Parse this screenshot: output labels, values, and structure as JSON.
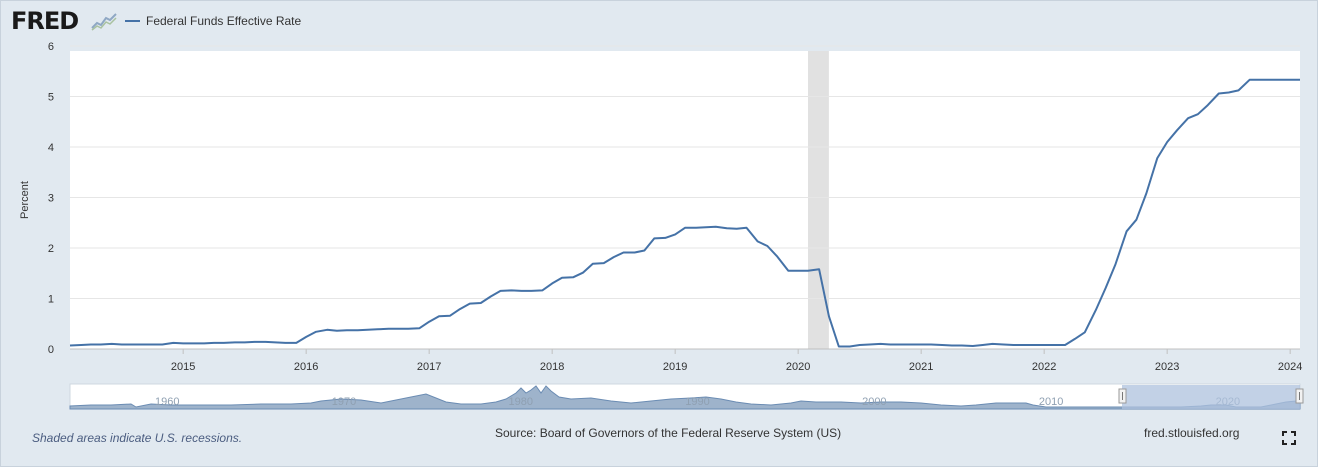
{
  "header": {
    "logo_text": "FRED",
    "legend_label": "Federal Funds Effective Rate",
    "series_color": "#4572a7"
  },
  "footer": {
    "recession_note": "Shaded areas indicate U.S. recessions.",
    "source": "Source: Board of Governors of the Federal Reserve System (US)",
    "site": "fred.stlouisfed.org",
    "fullscreen_icon": "fullscreen-icon"
  },
  "chart_data": {
    "type": "line",
    "title": "Federal Funds Effective Rate",
    "xlabel": "",
    "ylabel": "Percent",
    "x_domain": [
      2014.08,
      2024.08
    ],
    "ylim": [
      0,
      6
    ],
    "y_ticks": [
      "0",
      "1",
      "2",
      "3",
      "4",
      "5",
      "6"
    ],
    "x_ticks": [
      "2015",
      "2016",
      "2017",
      "2018",
      "2019",
      "2020",
      "2021",
      "2022",
      "2023",
      "2024"
    ],
    "recessions": [
      [
        2020.08,
        2020.25
      ]
    ],
    "series": [
      {
        "name": "Federal Funds Effective Rate",
        "color": "#4572a7",
        "points": [
          [
            2014.08,
            0.07
          ],
          [
            2014.17,
            0.08
          ],
          [
            2014.25,
            0.09
          ],
          [
            2014.33,
            0.09
          ],
          [
            2014.42,
            0.1
          ],
          [
            2014.5,
            0.09
          ],
          [
            2014.58,
            0.09
          ],
          [
            2014.67,
            0.09
          ],
          [
            2014.75,
            0.09
          ],
          [
            2014.83,
            0.09
          ],
          [
            2014.92,
            0.12
          ],
          [
            2015.0,
            0.11
          ],
          [
            2015.08,
            0.11
          ],
          [
            2015.17,
            0.11
          ],
          [
            2015.25,
            0.12
          ],
          [
            2015.33,
            0.12
          ],
          [
            2015.42,
            0.13
          ],
          [
            2015.5,
            0.13
          ],
          [
            2015.58,
            0.14
          ],
          [
            2015.67,
            0.14
          ],
          [
            2015.75,
            0.13
          ],
          [
            2015.83,
            0.12
          ],
          [
            2015.92,
            0.12
          ],
          [
            2016.0,
            0.24
          ],
          [
            2016.08,
            0.34
          ],
          [
            2016.17,
            0.38
          ],
          [
            2016.25,
            0.36
          ],
          [
            2016.33,
            0.37
          ],
          [
            2016.42,
            0.37
          ],
          [
            2016.5,
            0.38
          ],
          [
            2016.58,
            0.39
          ],
          [
            2016.67,
            0.4
          ],
          [
            2016.75,
            0.4
          ],
          [
            2016.83,
            0.4
          ],
          [
            2016.92,
            0.41
          ],
          [
            2017.0,
            0.54
          ],
          [
            2017.08,
            0.65
          ],
          [
            2017.17,
            0.66
          ],
          [
            2017.25,
            0.79
          ],
          [
            2017.33,
            0.9
          ],
          [
            2017.42,
            0.91
          ],
          [
            2017.5,
            1.04
          ],
          [
            2017.58,
            1.15
          ],
          [
            2017.67,
            1.16
          ],
          [
            2017.75,
            1.15
          ],
          [
            2017.83,
            1.15
          ],
          [
            2017.92,
            1.16
          ],
          [
            2018.0,
            1.3
          ],
          [
            2018.08,
            1.41
          ],
          [
            2018.17,
            1.42
          ],
          [
            2018.25,
            1.51
          ],
          [
            2018.33,
            1.69
          ],
          [
            2018.42,
            1.7
          ],
          [
            2018.5,
            1.82
          ],
          [
            2018.58,
            1.91
          ],
          [
            2018.67,
            1.91
          ],
          [
            2018.75,
            1.95
          ],
          [
            2018.83,
            2.19
          ],
          [
            2018.92,
            2.2
          ],
          [
            2019.0,
            2.27
          ],
          [
            2019.08,
            2.4
          ],
          [
            2019.17,
            2.4
          ],
          [
            2019.25,
            2.41
          ],
          [
            2019.33,
            2.42
          ],
          [
            2019.42,
            2.39
          ],
          [
            2019.5,
            2.38
          ],
          [
            2019.58,
            2.4
          ],
          [
            2019.67,
            2.13
          ],
          [
            2019.75,
            2.04
          ],
          [
            2019.83,
            1.83
          ],
          [
            2019.92,
            1.55
          ],
          [
            2020.0,
            1.55
          ],
          [
            2020.08,
            1.55
          ],
          [
            2020.17,
            1.58
          ],
          [
            2020.25,
            0.65
          ],
          [
            2020.33,
            0.05
          ],
          [
            2020.42,
            0.05
          ],
          [
            2020.5,
            0.08
          ],
          [
            2020.58,
            0.09
          ],
          [
            2020.67,
            0.1
          ],
          [
            2020.75,
            0.09
          ],
          [
            2020.83,
            0.09
          ],
          [
            2020.92,
            0.09
          ],
          [
            2021.0,
            0.09
          ],
          [
            2021.08,
            0.09
          ],
          [
            2021.17,
            0.08
          ],
          [
            2021.25,
            0.07
          ],
          [
            2021.33,
            0.07
          ],
          [
            2021.42,
            0.06
          ],
          [
            2021.5,
            0.08
          ],
          [
            2021.58,
            0.1
          ],
          [
            2021.67,
            0.09
          ],
          [
            2021.75,
            0.08
          ],
          [
            2021.83,
            0.08
          ],
          [
            2021.92,
            0.08
          ],
          [
            2022.0,
            0.08
          ],
          [
            2022.08,
            0.08
          ],
          [
            2022.17,
            0.08
          ],
          [
            2022.25,
            0.2
          ],
          [
            2022.33,
            0.33
          ],
          [
            2022.42,
            0.77
          ],
          [
            2022.5,
            1.21
          ],
          [
            2022.58,
            1.68
          ],
          [
            2022.67,
            2.33
          ],
          [
            2022.75,
            2.56
          ],
          [
            2022.83,
            3.08
          ],
          [
            2022.92,
            3.78
          ],
          [
            2023.0,
            4.1
          ],
          [
            2023.08,
            4.33
          ],
          [
            2023.17,
            4.57
          ],
          [
            2023.25,
            4.65
          ],
          [
            2023.33,
            4.83
          ],
          [
            2023.42,
            5.06
          ],
          [
            2023.5,
            5.08
          ],
          [
            2023.58,
            5.12
          ],
          [
            2023.67,
            5.33
          ],
          [
            2023.75,
            5.33
          ],
          [
            2023.83,
            5.33
          ],
          [
            2023.92,
            5.33
          ],
          [
            2024.0,
            5.33
          ],
          [
            2024.08,
            5.33
          ]
        ]
      }
    ],
    "navigator": {
      "x_ticks": [
        "1960",
        "1970",
        "1980",
        "1990",
        "2000",
        "2010",
        "2020"
      ],
      "selected_range": [
        "2014",
        "2024"
      ]
    }
  }
}
